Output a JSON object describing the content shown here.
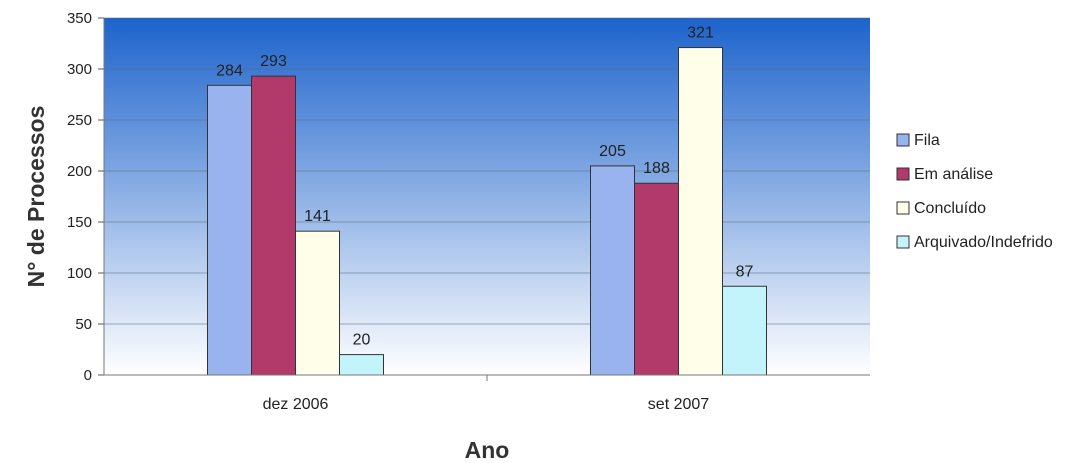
{
  "chart_data": {
    "type": "bar",
    "xlabel": "Ano",
    "ylabel": "N° de Processos",
    "ylim": [
      0,
      350
    ],
    "yticks": [
      0,
      50,
      100,
      150,
      200,
      250,
      300,
      350
    ],
    "categories": [
      "dez 2006",
      "set 2007"
    ],
    "series": [
      {
        "name": "Fila",
        "values": [
          284,
          205
        ],
        "color": "#99b3ee"
      },
      {
        "name": "Em análise",
        "values": [
          293,
          188
        ],
        "color": "#b23a6b"
      },
      {
        "name": "Concluído",
        "values": [
          141,
          321
        ],
        "color": "#fffee8"
      },
      {
        "name": "Arquivado/Indefrido",
        "values": [
          20,
          87
        ],
        "color": "#c3f3fb"
      }
    ],
    "grid": true,
    "legend": "right",
    "background_gradient": [
      "#1d63cc",
      "#ffffff"
    ]
  }
}
